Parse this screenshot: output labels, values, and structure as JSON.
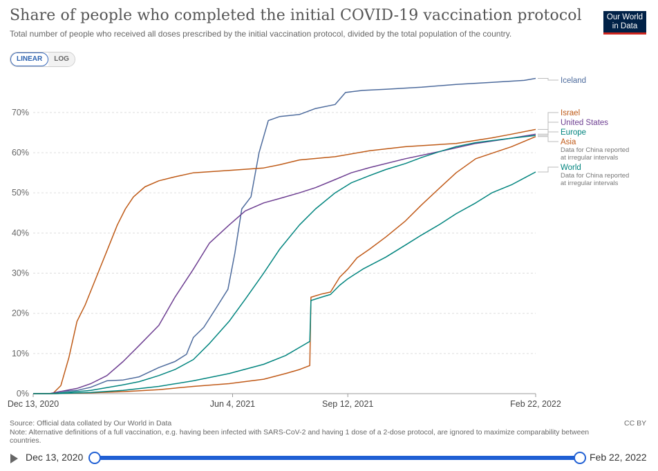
{
  "header": {
    "title": "Share of people who completed the initial COVID-19 vaccination protocol",
    "subtitle": "Total number of people who received all doses prescribed by the initial vaccination protocol, divided by the total population of the country.",
    "logo_line1": "Our World",
    "logo_line2": "in Data"
  },
  "controls": {
    "linear_label": "LINEAR",
    "log_label": "LOG"
  },
  "footer": {
    "source": "Source: Official data collated by Our World in Data",
    "note": "Note: Alternative definitions of a full vaccination, e.g. having been infected with SARS-CoV-2 and having 1 dose of a 2-dose protocol, are ignored to maximize comparability between countries.",
    "license": "CC BY"
  },
  "timeline": {
    "start_label": "Dec 13, 2020",
    "end_label": "Feb 22, 2022"
  },
  "chart_data": {
    "type": "line",
    "x_type": "date",
    "xlim": [
      "2020-12-13",
      "2022-02-22"
    ],
    "x_ticks": [
      {
        "date": "2020-12-13",
        "label": "Dec 13, 2020"
      },
      {
        "date": "2021-06-04",
        "label": "Jun 4, 2021"
      },
      {
        "date": "2021-09-12",
        "label": "Sep 12, 2021"
      },
      {
        "date": "2022-02-22",
        "label": "Feb 22, 2022"
      }
    ],
    "ylim": [
      0,
      78
    ],
    "y_ticks": [
      0,
      10,
      20,
      30,
      40,
      50,
      60,
      70
    ],
    "y_tick_labels": [
      "0%",
      "10%",
      "20%",
      "30%",
      "40%",
      "50%",
      "60%",
      "70%"
    ],
    "grid": "horizontal-dashed",
    "legend_placement": "right",
    "series": [
      {
        "name": "Iceland",
        "color": "#4c6a9c",
        "note": "",
        "points": [
          [
            "2020-12-13",
            0
          ],
          [
            "2020-12-29",
            0
          ],
          [
            "2021-01-05",
            0.5
          ],
          [
            "2021-01-20",
            0.8
          ],
          [
            "2021-02-01",
            1.6
          ],
          [
            "2021-02-15",
            3.2
          ],
          [
            "2021-03-01",
            3.4
          ],
          [
            "2021-03-15",
            4.2
          ],
          [
            "2021-04-01",
            6.5
          ],
          [
            "2021-04-15",
            8
          ],
          [
            "2021-04-25",
            9.8
          ],
          [
            "2021-05-01",
            14
          ],
          [
            "2021-05-10",
            16.5
          ],
          [
            "2021-05-20",
            21
          ],
          [
            "2021-05-31",
            26
          ],
          [
            "2021-06-06",
            35
          ],
          [
            "2021-06-12",
            46
          ],
          [
            "2021-06-20",
            49
          ],
          [
            "2021-06-27",
            60
          ],
          [
            "2021-07-05",
            68
          ],
          [
            "2021-07-15",
            69
          ],
          [
            "2021-08-01",
            69.5
          ],
          [
            "2021-08-15",
            71
          ],
          [
            "2021-09-01",
            72
          ],
          [
            "2021-09-10",
            75
          ],
          [
            "2021-09-25",
            75.5
          ],
          [
            "2021-10-15",
            75.8
          ],
          [
            "2021-11-15",
            76.3
          ],
          [
            "2021-12-15",
            77
          ],
          [
            "2022-01-15",
            77.5
          ],
          [
            "2022-02-12",
            78
          ],
          [
            "2022-02-22",
            78.5
          ]
        ]
      },
      {
        "name": "Israel",
        "color": "#be5915",
        "note": "",
        "points": [
          [
            "2020-12-13",
            0
          ],
          [
            "2020-12-30",
            0
          ],
          [
            "2021-01-06",
            2
          ],
          [
            "2021-01-13",
            9
          ],
          [
            "2021-01-20",
            18
          ],
          [
            "2021-01-27",
            22
          ],
          [
            "2021-02-03",
            27
          ],
          [
            "2021-02-10",
            32
          ],
          [
            "2021-02-17",
            37
          ],
          [
            "2021-02-24",
            42
          ],
          [
            "2021-03-03",
            46
          ],
          [
            "2021-03-10",
            49
          ],
          [
            "2021-03-20",
            51.5
          ],
          [
            "2021-04-01",
            53
          ],
          [
            "2021-04-15",
            54
          ],
          [
            "2021-05-01",
            55
          ],
          [
            "2021-06-01",
            55.6
          ],
          [
            "2021-07-01",
            56.2
          ],
          [
            "2021-07-15",
            57
          ],
          [
            "2021-08-01",
            58.2
          ],
          [
            "2021-09-01",
            59
          ],
          [
            "2021-10-01",
            60.5
          ],
          [
            "2021-11-01",
            61.5
          ],
          [
            "2021-12-15",
            62.3
          ],
          [
            "2022-01-15",
            63.7
          ],
          [
            "2022-02-01",
            64.6
          ],
          [
            "2022-02-22",
            65.8
          ]
        ]
      },
      {
        "name": "United States",
        "color": "#6d3e91",
        "note": "",
        "points": [
          [
            "2020-12-13",
            0
          ],
          [
            "2020-12-27",
            0
          ],
          [
            "2021-01-05",
            0.5
          ],
          [
            "2021-01-20",
            1.3
          ],
          [
            "2021-02-01",
            2.5
          ],
          [
            "2021-02-15",
            4.5
          ],
          [
            "2021-03-01",
            8
          ],
          [
            "2021-03-15",
            12
          ],
          [
            "2021-04-01",
            17
          ],
          [
            "2021-04-15",
            24
          ],
          [
            "2021-05-01",
            31
          ],
          [
            "2021-05-15",
            37.5
          ],
          [
            "2021-06-01",
            42
          ],
          [
            "2021-06-15",
            45.5
          ],
          [
            "2021-07-01",
            47.5
          ],
          [
            "2021-07-15",
            48.6
          ],
          [
            "2021-08-01",
            50
          ],
          [
            "2021-08-15",
            51.3
          ],
          [
            "2021-09-01",
            53.3
          ],
          [
            "2021-09-15",
            55
          ],
          [
            "2021-10-01",
            56.3
          ],
          [
            "2021-11-01",
            58.5
          ],
          [
            "2021-12-01",
            60.3
          ],
          [
            "2022-01-01",
            62.3
          ],
          [
            "2022-02-01",
            63.6
          ],
          [
            "2022-02-22",
            64.6
          ]
        ]
      },
      {
        "name": "Europe",
        "color": "#00847e",
        "note": "",
        "points": [
          [
            "2020-12-13",
            0
          ],
          [
            "2020-12-27",
            0
          ],
          [
            "2021-01-15",
            0.4
          ],
          [
            "2021-02-01",
            0.8
          ],
          [
            "2021-02-15",
            1.5
          ],
          [
            "2021-03-01",
            2.2
          ],
          [
            "2021-03-15",
            3
          ],
          [
            "2021-04-01",
            4.5
          ],
          [
            "2021-04-15",
            6
          ],
          [
            "2021-05-01",
            8.5
          ],
          [
            "2021-05-15",
            12.5
          ],
          [
            "2021-06-01",
            18
          ],
          [
            "2021-06-15",
            23.5
          ],
          [
            "2021-07-01",
            30
          ],
          [
            "2021-07-15",
            36
          ],
          [
            "2021-08-01",
            42
          ],
          [
            "2021-08-15",
            46
          ],
          [
            "2021-09-01",
            50
          ],
          [
            "2021-09-15",
            52.5
          ],
          [
            "2021-10-01",
            54.3
          ],
          [
            "2021-10-15",
            55.8
          ],
          [
            "2021-11-01",
            57.3
          ],
          [
            "2021-11-15",
            58.8
          ],
          [
            "2021-12-01",
            60.3
          ],
          [
            "2021-12-15",
            61.5
          ],
          [
            "2022-01-01",
            62.5
          ],
          [
            "2022-02-01",
            63.6
          ],
          [
            "2022-02-22",
            64.3
          ]
        ]
      },
      {
        "name": "Asia",
        "color": "#c05917",
        "note": "Data for China reported at irregular intervals",
        "points": [
          [
            "2020-12-13",
            0
          ],
          [
            "2021-01-01",
            0
          ],
          [
            "2021-02-01",
            0.2
          ],
          [
            "2021-03-01",
            0.5
          ],
          [
            "2021-04-01",
            1
          ],
          [
            "2021-05-01",
            1.8
          ],
          [
            "2021-06-01",
            2.5
          ],
          [
            "2021-07-01",
            3.6
          ],
          [
            "2021-07-20",
            5
          ],
          [
            "2021-08-01",
            6
          ],
          [
            "2021-08-10",
            7
          ],
          [
            "2021-08-11",
            24
          ],
          [
            "2021-08-20",
            24.8
          ],
          [
            "2021-08-28",
            25.3
          ],
          [
            "2021-09-05",
            29
          ],
          [
            "2021-09-12",
            31
          ],
          [
            "2021-09-20",
            33.8
          ],
          [
            "2021-10-01",
            36
          ],
          [
            "2021-10-15",
            39
          ],
          [
            "2021-11-01",
            43
          ],
          [
            "2021-11-15",
            47
          ],
          [
            "2021-12-01",
            51.3
          ],
          [
            "2021-12-15",
            55
          ],
          [
            "2022-01-01",
            58.5
          ],
          [
            "2022-02-01",
            61.5
          ],
          [
            "2022-02-22",
            64
          ]
        ]
      },
      {
        "name": "World",
        "color": "#00847e",
        "note": "Data for China reported at irregular intervals",
        "points": [
          [
            "2020-12-13",
            0
          ],
          [
            "2021-01-01",
            0
          ],
          [
            "2021-02-01",
            0.3
          ],
          [
            "2021-03-01",
            0.8
          ],
          [
            "2021-04-01",
            1.8
          ],
          [
            "2021-05-01",
            3.2
          ],
          [
            "2021-06-01",
            5
          ],
          [
            "2021-07-01",
            7.3
          ],
          [
            "2021-07-20",
            9.5
          ],
          [
            "2021-08-10",
            13
          ],
          [
            "2021-08-11",
            23.2
          ],
          [
            "2021-08-20",
            24
          ],
          [
            "2021-08-28",
            24.7
          ],
          [
            "2021-09-05",
            27
          ],
          [
            "2021-09-12",
            28.6
          ],
          [
            "2021-09-25",
            31
          ],
          [
            "2021-10-15",
            34
          ],
          [
            "2021-11-01",
            37
          ],
          [
            "2021-11-15",
            39.5
          ],
          [
            "2021-12-01",
            42.2
          ],
          [
            "2021-12-15",
            44.8
          ],
          [
            "2022-01-01",
            47.5
          ],
          [
            "2022-01-15",
            50
          ],
          [
            "2022-02-01",
            52
          ],
          [
            "2022-02-22",
            55.2
          ]
        ]
      }
    ]
  }
}
